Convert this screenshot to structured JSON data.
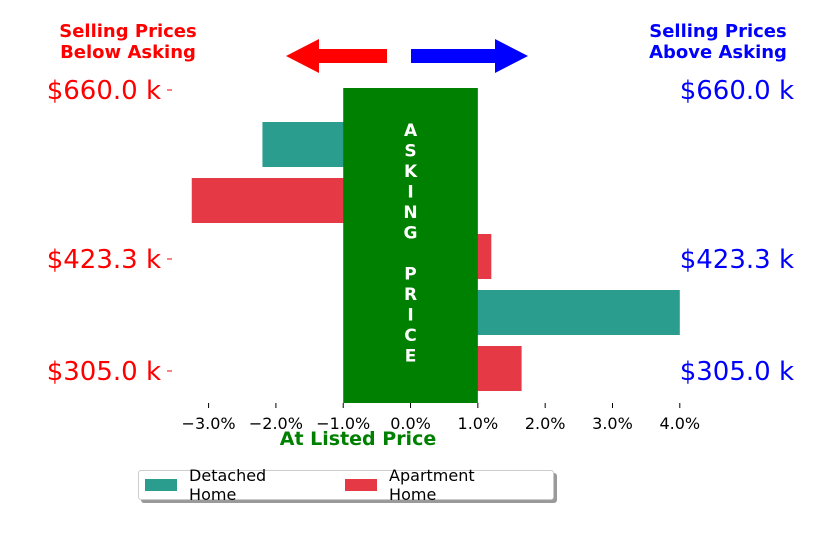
{
  "header": {
    "left_line1": "Selling Prices",
    "left_line2": "Below Asking",
    "right_line1": "Selling Prices",
    "right_line2": "Above Asking"
  },
  "colors": {
    "below": "#ff0000",
    "above": "#0000ff",
    "arrow_left": "#ff0000",
    "arrow_right": "#0000ff",
    "asking_bar": "#008000",
    "xlabel": "#008000"
  },
  "chart_data": {
    "type": "bar",
    "orientation": "horizontal",
    "xlabel": "At Listed Price",
    "xlim": [
      -3.9,
      4.3
    ],
    "xticks": [
      -3,
      -2,
      -1,
      0,
      1,
      2,
      3,
      4
    ],
    "xtick_labels": [
      "−3.0%",
      "−2.0%",
      "−1.0%",
      "0.0%",
      "1.0%",
      "2.0%",
      "3.0%",
      "4.0%"
    ],
    "price_labels": [
      "$660.0 k",
      "$423.3 k",
      "$305.0 k"
    ],
    "asking_band": {
      "from": -1.0,
      "to": 1.0,
      "text": "ASKING PRICE"
    },
    "series": [
      {
        "name": "Detached Home",
        "color": "#2a9d8f",
        "values": [
          -2.2,
          4.0
        ]
      },
      {
        "name": "Apartment Home",
        "color": "#e63946",
        "values": [
          -3.25,
          1.2,
          1.65
        ]
      }
    ],
    "bars": [
      {
        "series": "Detached Home",
        "value": -2.2
      },
      {
        "series": "Apartment Home",
        "value": -3.25
      },
      {
        "series": "Apartment Home",
        "value": 1.2
      },
      {
        "series": "Detached Home",
        "value": 4.0
      },
      {
        "series": "Apartment Home",
        "value": 1.65
      }
    ],
    "legend": {
      "placement": "bottom-center",
      "columns": 2
    },
    "grid": false
  }
}
